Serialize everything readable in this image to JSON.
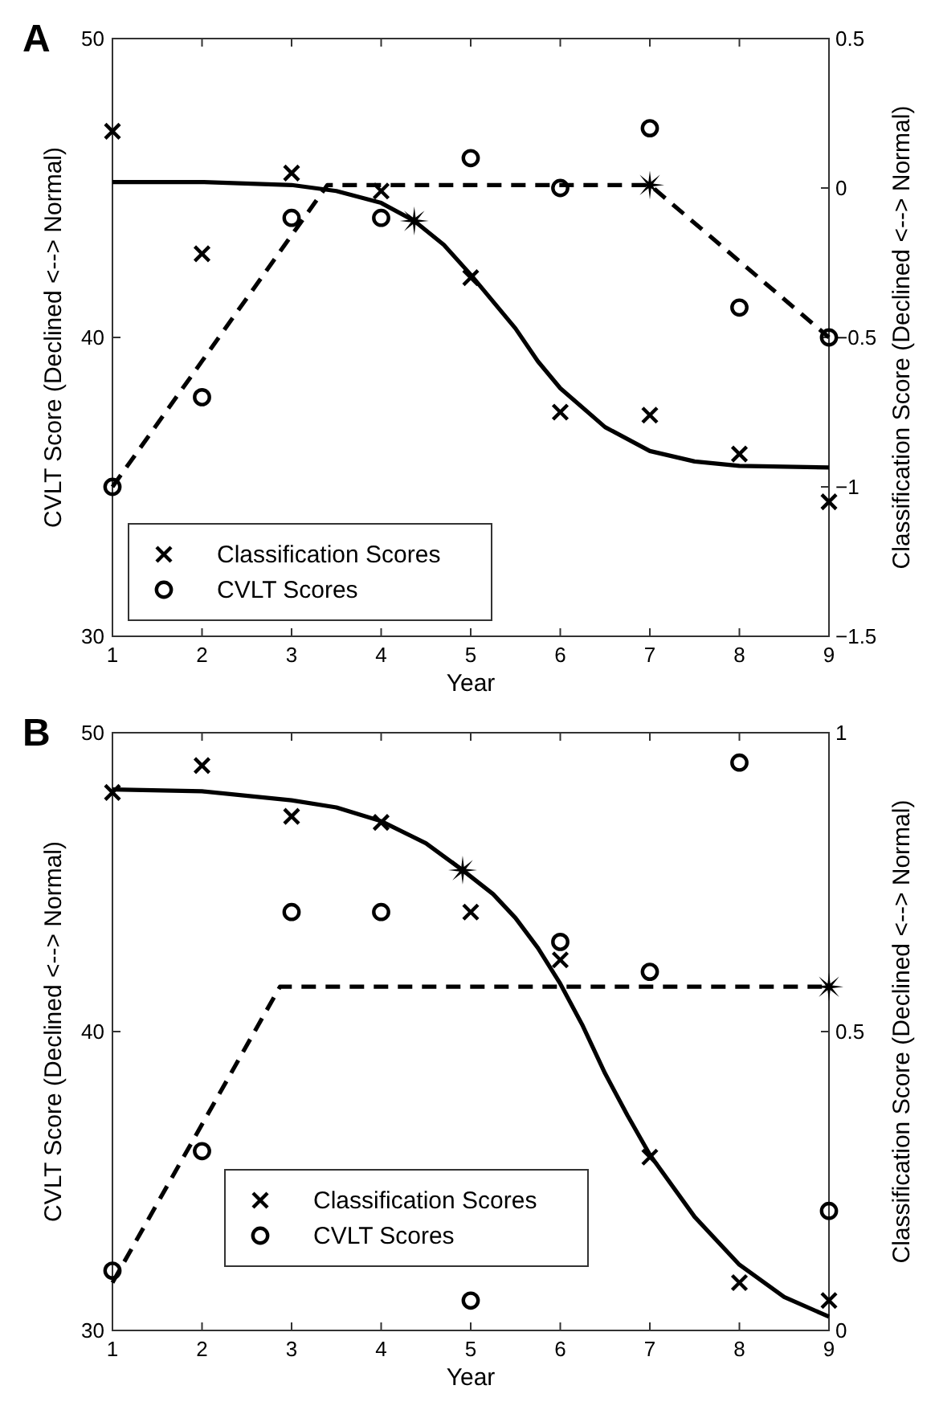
{
  "chart_data": [
    {
      "type": "scatter",
      "title": "A",
      "xlabel": "Year",
      "ylabel": "CVLT Score (Declined <--> Normal)",
      "y2label": "Classification Score (Declined <--> Normal)",
      "xlim": [
        1,
        9
      ],
      "xticks": [
        1,
        2,
        3,
        4,
        5,
        6,
        7,
        8,
        9
      ],
      "ylim": [
        30,
        50
      ],
      "yticks": [
        30,
        40,
        50
      ],
      "y2lim": [
        -1.5,
        0.5
      ],
      "y2ticks": [
        -1.5,
        -1,
        -0.5,
        0,
        0.5
      ],
      "legend": "bottom left",
      "series": [
        {
          "name": "Classification Scores",
          "marker": "cross",
          "axis": "y2",
          "color": "#000000",
          "x": [
            1,
            2,
            3,
            4,
            5,
            6,
            7,
            8,
            9
          ],
          "values": [
            0.19,
            -0.22,
            0.05,
            -0.01,
            -0.3,
            -0.75,
            -0.76,
            -0.89,
            -1.05
          ]
        },
        {
          "name": "CVLT Scores",
          "marker": "circle",
          "axis": "y",
          "color": "#000000",
          "x": [
            1,
            2,
            3,
            4,
            5,
            6,
            7,
            8,
            9
          ],
          "values": [
            35,
            38,
            44,
            44,
            46,
            45,
            47,
            41,
            40
          ]
        },
        {
          "type": "line",
          "line_style": "solid",
          "marker": "none",
          "axis": "y2",
          "color": "#000000",
          "x": [
            1,
            2,
            3,
            3.5,
            4,
            4.37,
            4.7,
            5,
            5.25,
            5.5,
            5.75,
            6,
            6.5,
            7,
            7.5,
            8,
            9
          ],
          "values": [
            0.02,
            0.02,
            0.01,
            -0.01,
            -0.05,
            -0.11,
            -0.19,
            -0.29,
            -0.38,
            -0.47,
            -0.58,
            -0.67,
            -0.8,
            -0.88,
            -0.915,
            -0.93,
            -0.935
          ]
        },
        {
          "type": "line",
          "line_style": "dashed",
          "marker": "none",
          "axis": "y",
          "color": "#000000",
          "x": [
            1,
            3.4,
            7,
            9
          ],
          "values": [
            35,
            45.1,
            45.1,
            40
          ]
        },
        {
          "marker": "star",
          "axis": "y2",
          "color": "#000000",
          "x": [
            4.37
          ],
          "values": [
            -0.11
          ]
        },
        {
          "marker": "star",
          "axis": "y",
          "color": "#000000",
          "x": [
            7
          ],
          "values": [
            45.1
          ]
        }
      ]
    },
    {
      "type": "scatter",
      "title": "B",
      "xlabel": "Year",
      "ylabel": "CVLT Score (Declined <--> Normal)",
      "y2label": "Classification Score (Declined <--> Normal)",
      "xlim": [
        1,
        9
      ],
      "xticks": [
        1,
        2,
        3,
        4,
        5,
        6,
        7,
        8,
        9
      ],
      "ylim": [
        30,
        50
      ],
      "yticks": [
        30,
        40,
        50
      ],
      "y2lim": [
        0,
        1
      ],
      "y2ticks": [
        0,
        0.5,
        1
      ],
      "legend": "bottom",
      "series": [
        {
          "name": "Classification Scores",
          "marker": "cross",
          "axis": "y2",
          "color": "#000000",
          "x": [
            1,
            2,
            3,
            4,
            5,
            6,
            7,
            8,
            9
          ],
          "values": [
            0.9,
            0.945,
            0.86,
            0.85,
            0.7,
            0.62,
            0.29,
            0.08,
            0.05
          ]
        },
        {
          "name": "CVLT Scores",
          "marker": "circle",
          "axis": "y",
          "color": "#000000",
          "x": [
            1,
            2,
            3,
            4,
            5,
            6,
            7,
            8,
            9
          ],
          "values": [
            32,
            36,
            44,
            44,
            31,
            43,
            42,
            49,
            34
          ]
        },
        {
          "type": "line",
          "line_style": "solid",
          "marker": "none",
          "axis": "y2",
          "color": "#000000",
          "x": [
            1,
            2,
            3,
            3.5,
            4,
            4.5,
            4.91,
            5.25,
            5.5,
            5.75,
            6,
            6.25,
            6.5,
            6.75,
            7,
            7.5,
            8,
            8.5,
            9
          ],
          "values": [
            0.905,
            0.902,
            0.887,
            0.875,
            0.852,
            0.815,
            0.77,
            0.73,
            0.69,
            0.64,
            0.58,
            0.51,
            0.43,
            0.36,
            0.294,
            0.19,
            0.11,
            0.056,
            0.023
          ]
        },
        {
          "type": "line",
          "line_style": "dashed",
          "marker": "none",
          "axis": "y",
          "color": "#000000",
          "x": [
            1,
            2.87,
            9
          ],
          "values": [
            31.6,
            41.5,
            41.5
          ]
        },
        {
          "marker": "star",
          "axis": "y2",
          "color": "#000000",
          "x": [
            4.91
          ],
          "values": [
            0.77
          ]
        },
        {
          "marker": "star",
          "axis": "y",
          "color": "#000000",
          "x": [
            9
          ],
          "values": [
            41.5
          ]
        }
      ]
    }
  ]
}
